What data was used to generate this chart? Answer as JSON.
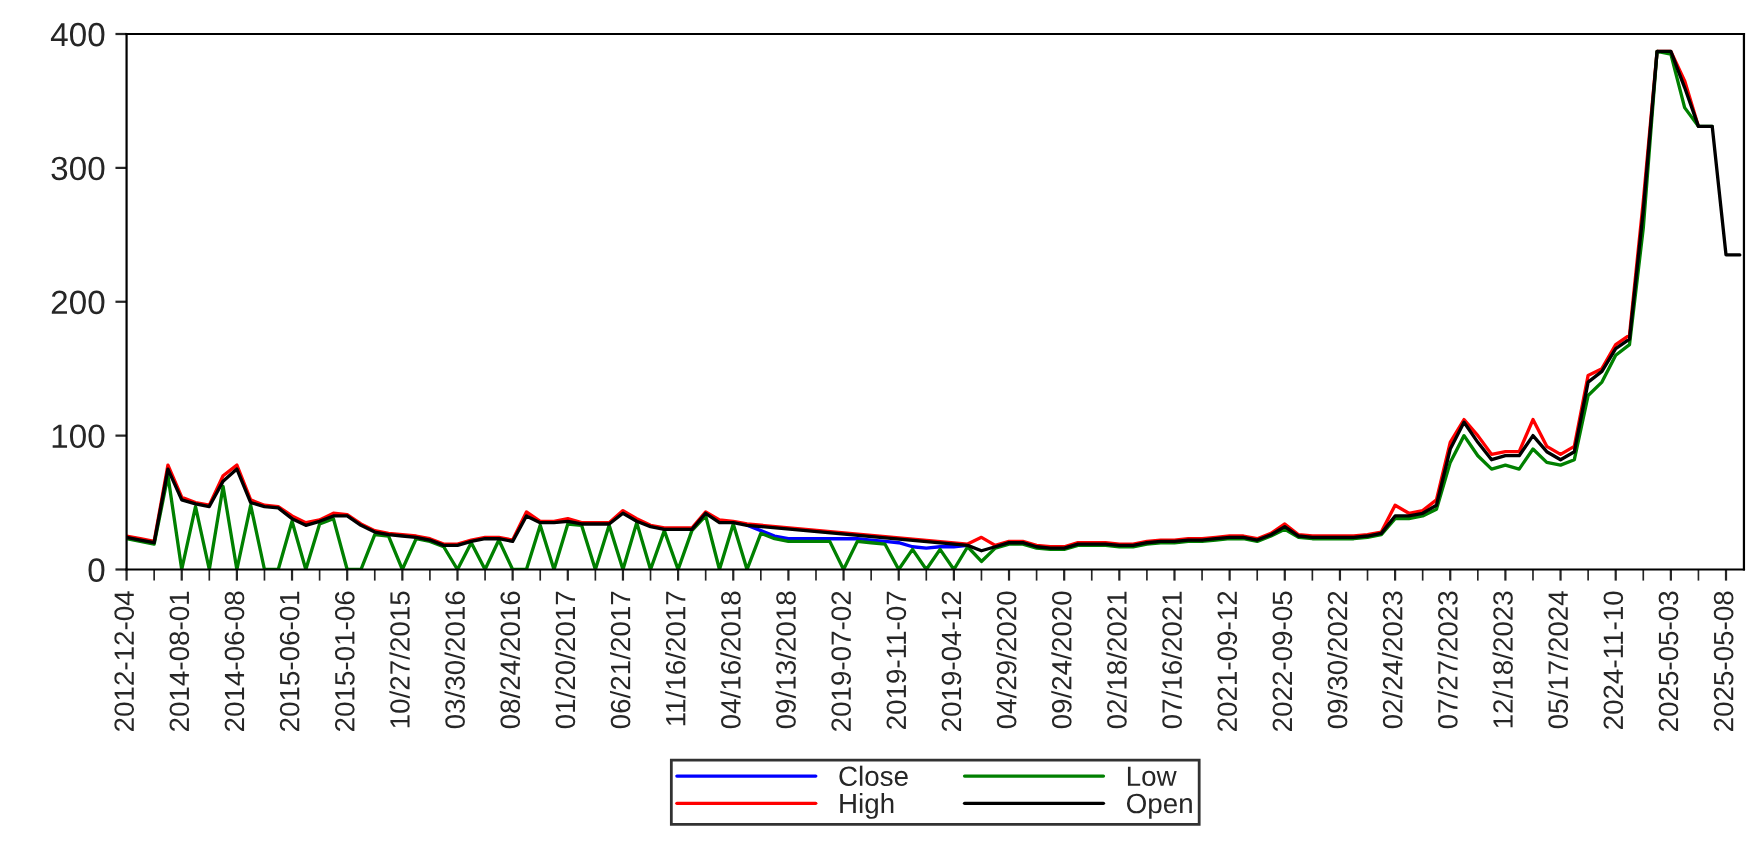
{
  "chart_data": {
    "type": "line",
    "categories": [
      "2012-12-04",
      null,
      null,
      null,
      "2014-08-01",
      null,
      null,
      null,
      "2014-06-08",
      null,
      null,
      null,
      "2015-06-01",
      null,
      null,
      null,
      "2015-01-06",
      null,
      null,
      null,
      "10/27/2015",
      null,
      null,
      null,
      "03/30/2016",
      null,
      null,
      null,
      "08/24/2016",
      null,
      null,
      null,
      "01/20/2017",
      null,
      null,
      null,
      "06/21/2017",
      null,
      null,
      null,
      "11/16/2017",
      null,
      null,
      null,
      "04/16/2018",
      null,
      null,
      null,
      "09/13/2018",
      null,
      null,
      null,
      "2019-07-02",
      null,
      null,
      null,
      "2019-11-07",
      null,
      null,
      null,
      "2019-04-12",
      null,
      null,
      null,
      "04/29/2020",
      null,
      null,
      null,
      "09/24/2020",
      null,
      null,
      null,
      "02/18/2021",
      null,
      null,
      null,
      "07/16/2021",
      null,
      null,
      null,
      "2021-09-12",
      null,
      null,
      null,
      "2022-09-05",
      null,
      null,
      null,
      "09/30/2022",
      null,
      null,
      null,
      "02/24/2023",
      null,
      null,
      null,
      "07/27/2023",
      null,
      null,
      null,
      "12/18/2023",
      null,
      null,
      null,
      "05/17/2024",
      null,
      null,
      null,
      "2024-11-10",
      null,
      null,
      null,
      "2025-05-03",
      null,
      null,
      null,
      "2025-05-08",
      null
    ],
    "series": [
      {
        "name": "Close",
        "color": "#0000ff",
        "values": [
          null,
          null,
          null,
          null,
          null,
          null,
          null,
          null,
          null,
          null,
          null,
          null,
          null,
          null,
          null,
          null,
          null,
          null,
          null,
          null,
          null,
          null,
          null,
          null,
          null,
          null,
          null,
          null,
          null,
          null,
          null,
          null,
          null,
          null,
          null,
          null,
          null,
          null,
          null,
          null,
          null,
          null,
          null,
          null,
          null,
          33,
          29,
          25,
          23,
          23,
          23,
          23,
          23,
          23,
          22,
          21,
          20,
          17,
          16,
          17,
          17,
          18,
          null,
          null,
          null,
          null,
          null,
          null,
          null,
          null,
          null,
          null,
          null,
          null,
          null,
          null,
          null,
          null,
          null,
          null,
          null,
          null,
          null,
          null,
          null,
          null,
          null,
          null,
          null,
          null,
          null,
          null,
          null,
          null,
          null,
          null,
          null,
          null,
          null,
          null,
          null,
          null,
          null,
          null,
          null,
          null,
          null,
          null,
          null,
          null,
          null,
          null,
          null,
          null,
          null,
          null,
          null,
          null
        ]
      },
      {
        "name": "High",
        "color": "#ff0000",
        "values": [
          25,
          23,
          21,
          78,
          54,
          50,
          48,
          70,
          78,
          52,
          48,
          47,
          40,
          35,
          37,
          42,
          41,
          34,
          29,
          27,
          26,
          25,
          23,
          19,
          19,
          22,
          24,
          24,
          22,
          43,
          36,
          36,
          38,
          35,
          35,
          35,
          44,
          38,
          33,
          31,
          31,
          31,
          43,
          37,
          36,
          34,
          null,
          null,
          null,
          null,
          null,
          null,
          null,
          null,
          null,
          null,
          null,
          null,
          null,
          null,
          null,
          19,
          24,
          18,
          21,
          21,
          18,
          17,
          17,
          20,
          20,
          20,
          19,
          19,
          21,
          22,
          22,
          23,
          23,
          24,
          25,
          25,
          23,
          27,
          34,
          26,
          25,
          25,
          25,
          25,
          26,
          28,
          48,
          42,
          44,
          52,
          95,
          112,
          100,
          86,
          88,
          88,
          112,
          92,
          86,
          92,
          145,
          150,
          168,
          175,
          275,
          387,
          387,
          365,
          331,
          null,
          null,
          null
        ]
      },
      {
        "name": "Low",
        "color": "#008000",
        "values": [
          23,
          21,
          19,
          70,
          0,
          47,
          0,
          62,
          0,
          48,
          0,
          0,
          36,
          0,
          34,
          38,
          0,
          0,
          26,
          25,
          0,
          23,
          21,
          17,
          0,
          20,
          0,
          22,
          0,
          0,
          33,
          0,
          34,
          33,
          0,
          33,
          0,
          35,
          0,
          29,
          0,
          29,
          40,
          0,
          34,
          0,
          27,
          23,
          21,
          21,
          21,
          21,
          0,
          21,
          20,
          19,
          0,
          15,
          0,
          15,
          0,
          17,
          6,
          16,
          19,
          19,
          16,
          15,
          15,
          18,
          18,
          18,
          17,
          17,
          19,
          20,
          20,
          21,
          21,
          22,
          23,
          23,
          21,
          25,
          30,
          24,
          23,
          23,
          23,
          23,
          24,
          26,
          38,
          38,
          40,
          45,
          80,
          100,
          85,
          75,
          78,
          75,
          90,
          80,
          78,
          82,
          130,
          140,
          160,
          168,
          255,
          387,
          385,
          345,
          331,
          331,
          null,
          null
        ]
      },
      {
        "name": "Open",
        "color": "#000000",
        "values": [
          24,
          22,
          20,
          75,
          52,
          49,
          47,
          66,
          75,
          50,
          47,
          46,
          38,
          33,
          36,
          40,
          40,
          33,
          28,
          26,
          25,
          24,
          22,
          18,
          18,
          21,
          23,
          23,
          21,
          40,
          35,
          35,
          36,
          34,
          34,
          34,
          42,
          36,
          32,
          30,
          30,
          30,
          42,
          35,
          35,
          33,
          null,
          null,
          null,
          null,
          null,
          null,
          null,
          null,
          null,
          null,
          null,
          null,
          null,
          null,
          null,
          18,
          14,
          17,
          20,
          20,
          17,
          16,
          16,
          19,
          19,
          19,
          18,
          18,
          20,
          21,
          21,
          22,
          22,
          23,
          24,
          24,
          22,
          26,
          32,
          25,
          24,
          24,
          24,
          24,
          25,
          27,
          40,
          40,
          42,
          48,
          90,
          110,
          95,
          82,
          85,
          85,
          100,
          88,
          82,
          88,
          140,
          148,
          165,
          172,
          268,
          387,
          387,
          360,
          331,
          331,
          235,
          235
        ]
      }
    ],
    "ylim": [
      0,
      400
    ],
    "yticks": [
      0,
      100,
      200,
      300,
      400
    ],
    "legend": "bottom",
    "grid": false,
    "marker": "none",
    "line_style": "solid"
  }
}
